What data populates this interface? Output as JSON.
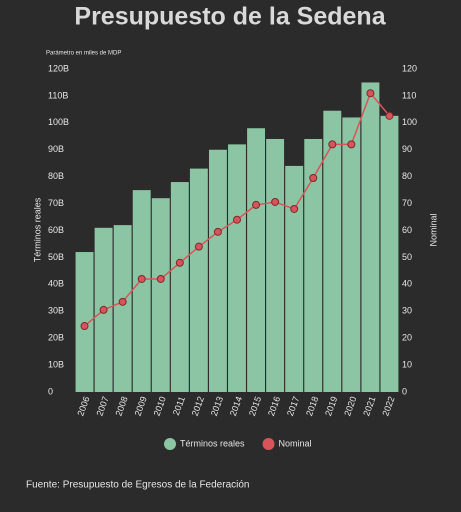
{
  "chart_data": {
    "type": "bar-line",
    "title": "Presupuesto de la Sedena",
    "subtitle": "Parámetro en miles de MDP",
    "y_label": "Términos reales",
    "y2_label": "Nominal",
    "source": "Fuente: Presupuesto de Egresos de la Federación",
    "categories": [
      "2006",
      "2007",
      "2008",
      "2009",
      "2010",
      "2011",
      "2012",
      "2013",
      "2014",
      "2015",
      "2016",
      "2017",
      "2018",
      "2019",
      "2020",
      "2021",
      "2022"
    ],
    "series": [
      {
        "name": "Términos reales",
        "type": "bar",
        "color": "#8cc5a3",
        "values": [
          52000000000,
          61000000000,
          62000000000,
          75000000000,
          72000000000,
          78000000000,
          83000000000,
          90000000000,
          92000000000,
          98000000000,
          94000000000,
          84000000000,
          94000000000,
          104500000000,
          102000000000,
          115000000000,
          102600000000
        ]
      },
      {
        "name": "Nominal",
        "type": "line",
        "axis": "y2",
        "color": "#d9545a",
        "values": [
          24.5,
          30.5,
          33.5,
          42,
          42,
          48,
          54,
          59.5,
          64,
          69.5,
          70.6,
          68,
          79.5,
          92,
          92,
          111,
          102.6
        ]
      }
    ],
    "ylim": [
      0,
      120000000000
    ],
    "yticks": [
      0,
      {
        "value": 10000000000,
        "label": "10B"
      },
      {
        "value": 20000000000,
        "label": "20B"
      },
      {
        "value": 30000000000,
        "label": "30B"
      },
      {
        "value": 40000000000,
        "label": "40B"
      },
      {
        "value": 50000000000,
        "label": "50B"
      },
      {
        "value": 60000000000,
        "label": "60B"
      },
      {
        "value": 70000000000,
        "label": "70B"
      },
      {
        "value": 80000000000,
        "label": "80B"
      },
      {
        "value": 90000000000,
        "label": "90B"
      },
      {
        "value": 100000000000,
        "label": "100B"
      },
      {
        "value": 110000000000,
        "label": "110B"
      },
      {
        "value": 120000000000,
        "label": "120B"
      }
    ],
    "y2lim": [
      0,
      120
    ],
    "y2ticks": [
      0,
      10,
      20,
      30,
      40,
      50,
      60,
      70,
      80,
      90,
      100,
      110,
      120
    ],
    "legend": "bottom"
  }
}
